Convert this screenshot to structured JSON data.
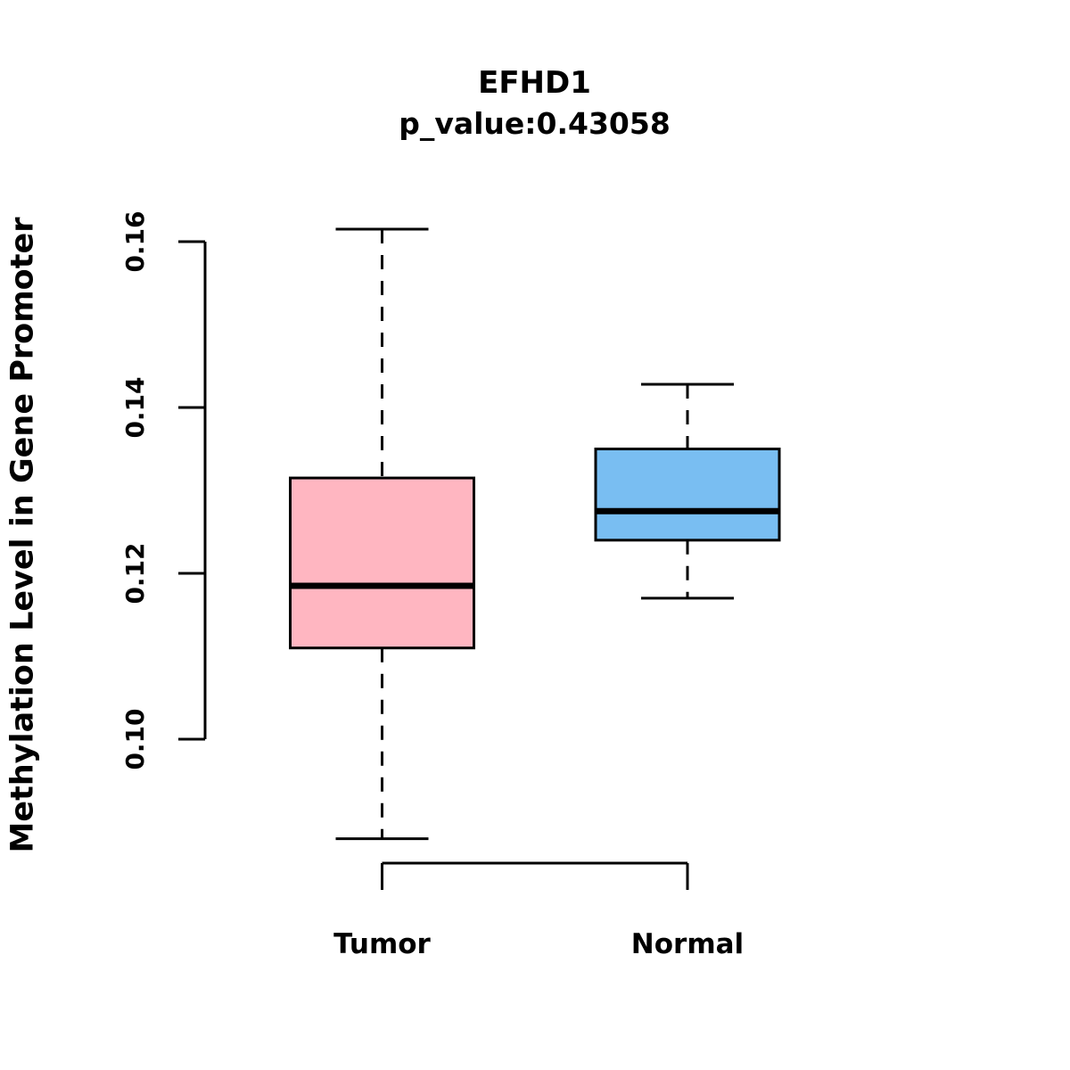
{
  "chart_data": {
    "type": "boxplot",
    "title": "EFHD1",
    "subtitle": "p_value:0.43058",
    "p_value": "0.43058",
    "ylabel": "Methylation Level in Gene Promoter",
    "xlabel": "",
    "categories": [
      "Tumor",
      "Normal"
    ],
    "y_ticks": [
      {
        "label": "0.10",
        "value": 0.1
      },
      {
        "label": "0.12",
        "value": 0.12
      },
      {
        "label": "0.14",
        "value": 0.14
      },
      {
        "label": "0.16",
        "value": 0.16
      }
    ],
    "ylim": [
      0.085,
      0.163
    ],
    "grid": false,
    "legend": "none",
    "series": [
      {
        "name": "Tumor",
        "color": "#FFB6C1",
        "whisker_low": 0.088,
        "q1": 0.111,
        "median": 0.1185,
        "q3": 0.1315,
        "whisker_high": 0.1615
      },
      {
        "name": "Normal",
        "color": "#79BEF2",
        "whisker_low": 0.117,
        "q1": 0.124,
        "median": 0.1275,
        "q3": 0.135,
        "whisker_high": 0.1428
      }
    ],
    "stroke_color": "#000000",
    "background_color": "#ffffff"
  }
}
